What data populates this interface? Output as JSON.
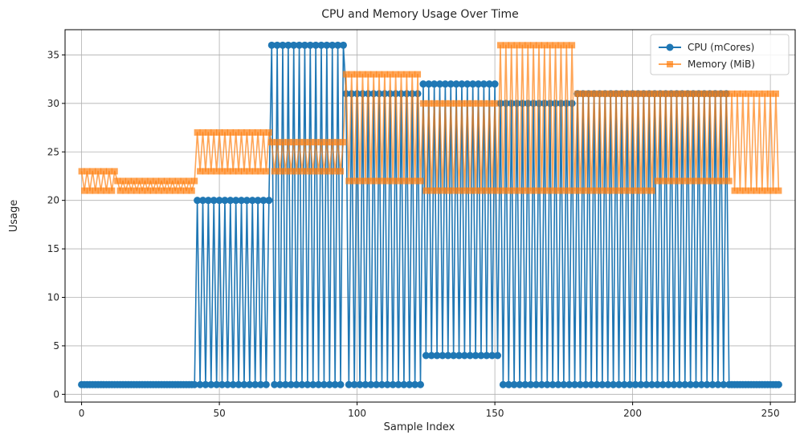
{
  "chart_data": {
    "type": "line",
    "title": "CPU and Memory Usage Over Time",
    "xlabel": "Sample Index",
    "ylabel": "Usage",
    "xlim": [
      -6,
      259
    ],
    "ylim": [
      -0.8,
      37.6
    ],
    "xticks": [
      0,
      50,
      100,
      150,
      200,
      250
    ],
    "yticks": [
      0,
      5,
      10,
      15,
      20,
      25,
      30,
      35
    ],
    "grid": true,
    "legend_position": "top-right",
    "x_start": 0,
    "series": [
      {
        "name": "CPU (mCores)",
        "color": "#1f77b4",
        "marker": "circle",
        "segments": [
          {
            "count": 42,
            "a": 1,
            "b": 1
          },
          {
            "count": 27,
            "a": 20,
            "b": 1
          },
          {
            "count": 27,
            "a": 36,
            "b": 1
          },
          {
            "count": 28,
            "a": 31,
            "b": 1
          },
          {
            "count": 28,
            "a": 32,
            "b": 4
          },
          {
            "count": 28,
            "a": 30,
            "b": 1
          },
          {
            "count": 56,
            "a": 31,
            "b": 1
          },
          {
            "count": 18,
            "a": 1,
            "b": 1
          }
        ]
      },
      {
        "name": "Memory (MiB)",
        "color": "#ff7f0e",
        "marker": "square",
        "segments": [
          {
            "count": 13,
            "a": 23,
            "b": 21
          },
          {
            "count": 29,
            "a": 22,
            "b": 21
          },
          {
            "count": 27,
            "a": 27,
            "b": 23
          },
          {
            "count": 27,
            "a": 26,
            "b": 23
          },
          {
            "count": 28,
            "a": 33,
            "b": 22
          },
          {
            "count": 28,
            "a": 30,
            "b": 21
          },
          {
            "count": 28,
            "a": 36,
            "b": 21
          },
          {
            "count": 28,
            "a": 31,
            "b": 21
          },
          {
            "count": 28,
            "a": 31,
            "b": 22
          },
          {
            "count": 18,
            "a": 31,
            "b": 21
          }
        ]
      }
    ]
  }
}
